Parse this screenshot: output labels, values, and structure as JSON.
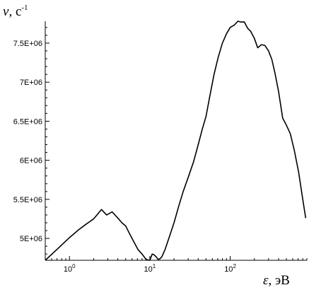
{
  "chart_data": {
    "type": "line",
    "title": "",
    "xlabel": {
      "symbol": "ε",
      "unit": "эВ",
      "separator": ", "
    },
    "ylabel": {
      "symbol": "ν",
      "unit": "c",
      "unit_exponent": "-1",
      "separator": ", "
    },
    "x_scale": "log",
    "xlim": [
      0.5,
      900
    ],
    "ylim": [
      4720000,
      7780000
    ],
    "grid": false,
    "x_ticks": [
      {
        "value": 1,
        "base": "10",
        "exponent": "0"
      },
      {
        "value": 10,
        "base": "10",
        "exponent": "1"
      },
      {
        "value": 100,
        "base": "10",
        "exponent": "2"
      }
    ],
    "y_ticks": [
      {
        "value": 5000000,
        "label": "5E+06"
      },
      {
        "value": 5500000,
        "label": "5.5E+06"
      },
      {
        "value": 6000000,
        "label": "6E+06"
      },
      {
        "value": 6500000,
        "label": "6.5E+06"
      },
      {
        "value": 7000000,
        "label": "7E+06"
      },
      {
        "value": 7500000,
        "label": "7.5E+06"
      }
    ],
    "series": [
      {
        "color": "#000000",
        "x": [
          0.5,
          0.7,
          1.0,
          1.3,
          1.6,
          2.0,
          2.5,
          2.9,
          3.4,
          4.0,
          4.5,
          5.0,
          5.6,
          6.3,
          7.1,
          8.0,
          9.0,
          10.0,
          10.7,
          11.3,
          12.1,
          12.7,
          13.4,
          14.2,
          15.5,
          17.5,
          20.0,
          23.0,
          26.0,
          30.0,
          35.0,
          40.0,
          45.0,
          50.0,
          56.0,
          63.0,
          71.0,
          80.0,
          90.0,
          100.0,
          112.0,
          125.0,
          135.0,
          150.0,
          165.0,
          180.0,
          200.0,
          220.0,
          245.0,
          270.0,
          300.0,
          330.0,
          360.0,
          400.0,
          450.0,
          500.0,
          560.0,
          630.0,
          710.0,
          800.0,
          870.0
        ],
        "y": [
          4720000,
          4860000,
          5010000,
          5110000,
          5180000,
          5250000,
          5370000,
          5300000,
          5340000,
          5260000,
          5200000,
          5160000,
          5060000,
          4960000,
          4860000,
          4800000,
          4730000,
          4720000,
          4800000,
          4790000,
          4760000,
          4730000,
          4740000,
          4770000,
          4860000,
          5020000,
          5200000,
          5420000,
          5600000,
          5780000,
          5980000,
          6200000,
          6400000,
          6560000,
          6830000,
          7100000,
          7320000,
          7500000,
          7620000,
          7700000,
          7730000,
          7780000,
          7770000,
          7770000,
          7690000,
          7650000,
          7560000,
          7440000,
          7480000,
          7470000,
          7400000,
          7290000,
          7120000,
          6880000,
          6540000,
          6450000,
          6340000,
          6120000,
          5850000,
          5500000,
          5260000
        ]
      }
    ]
  }
}
